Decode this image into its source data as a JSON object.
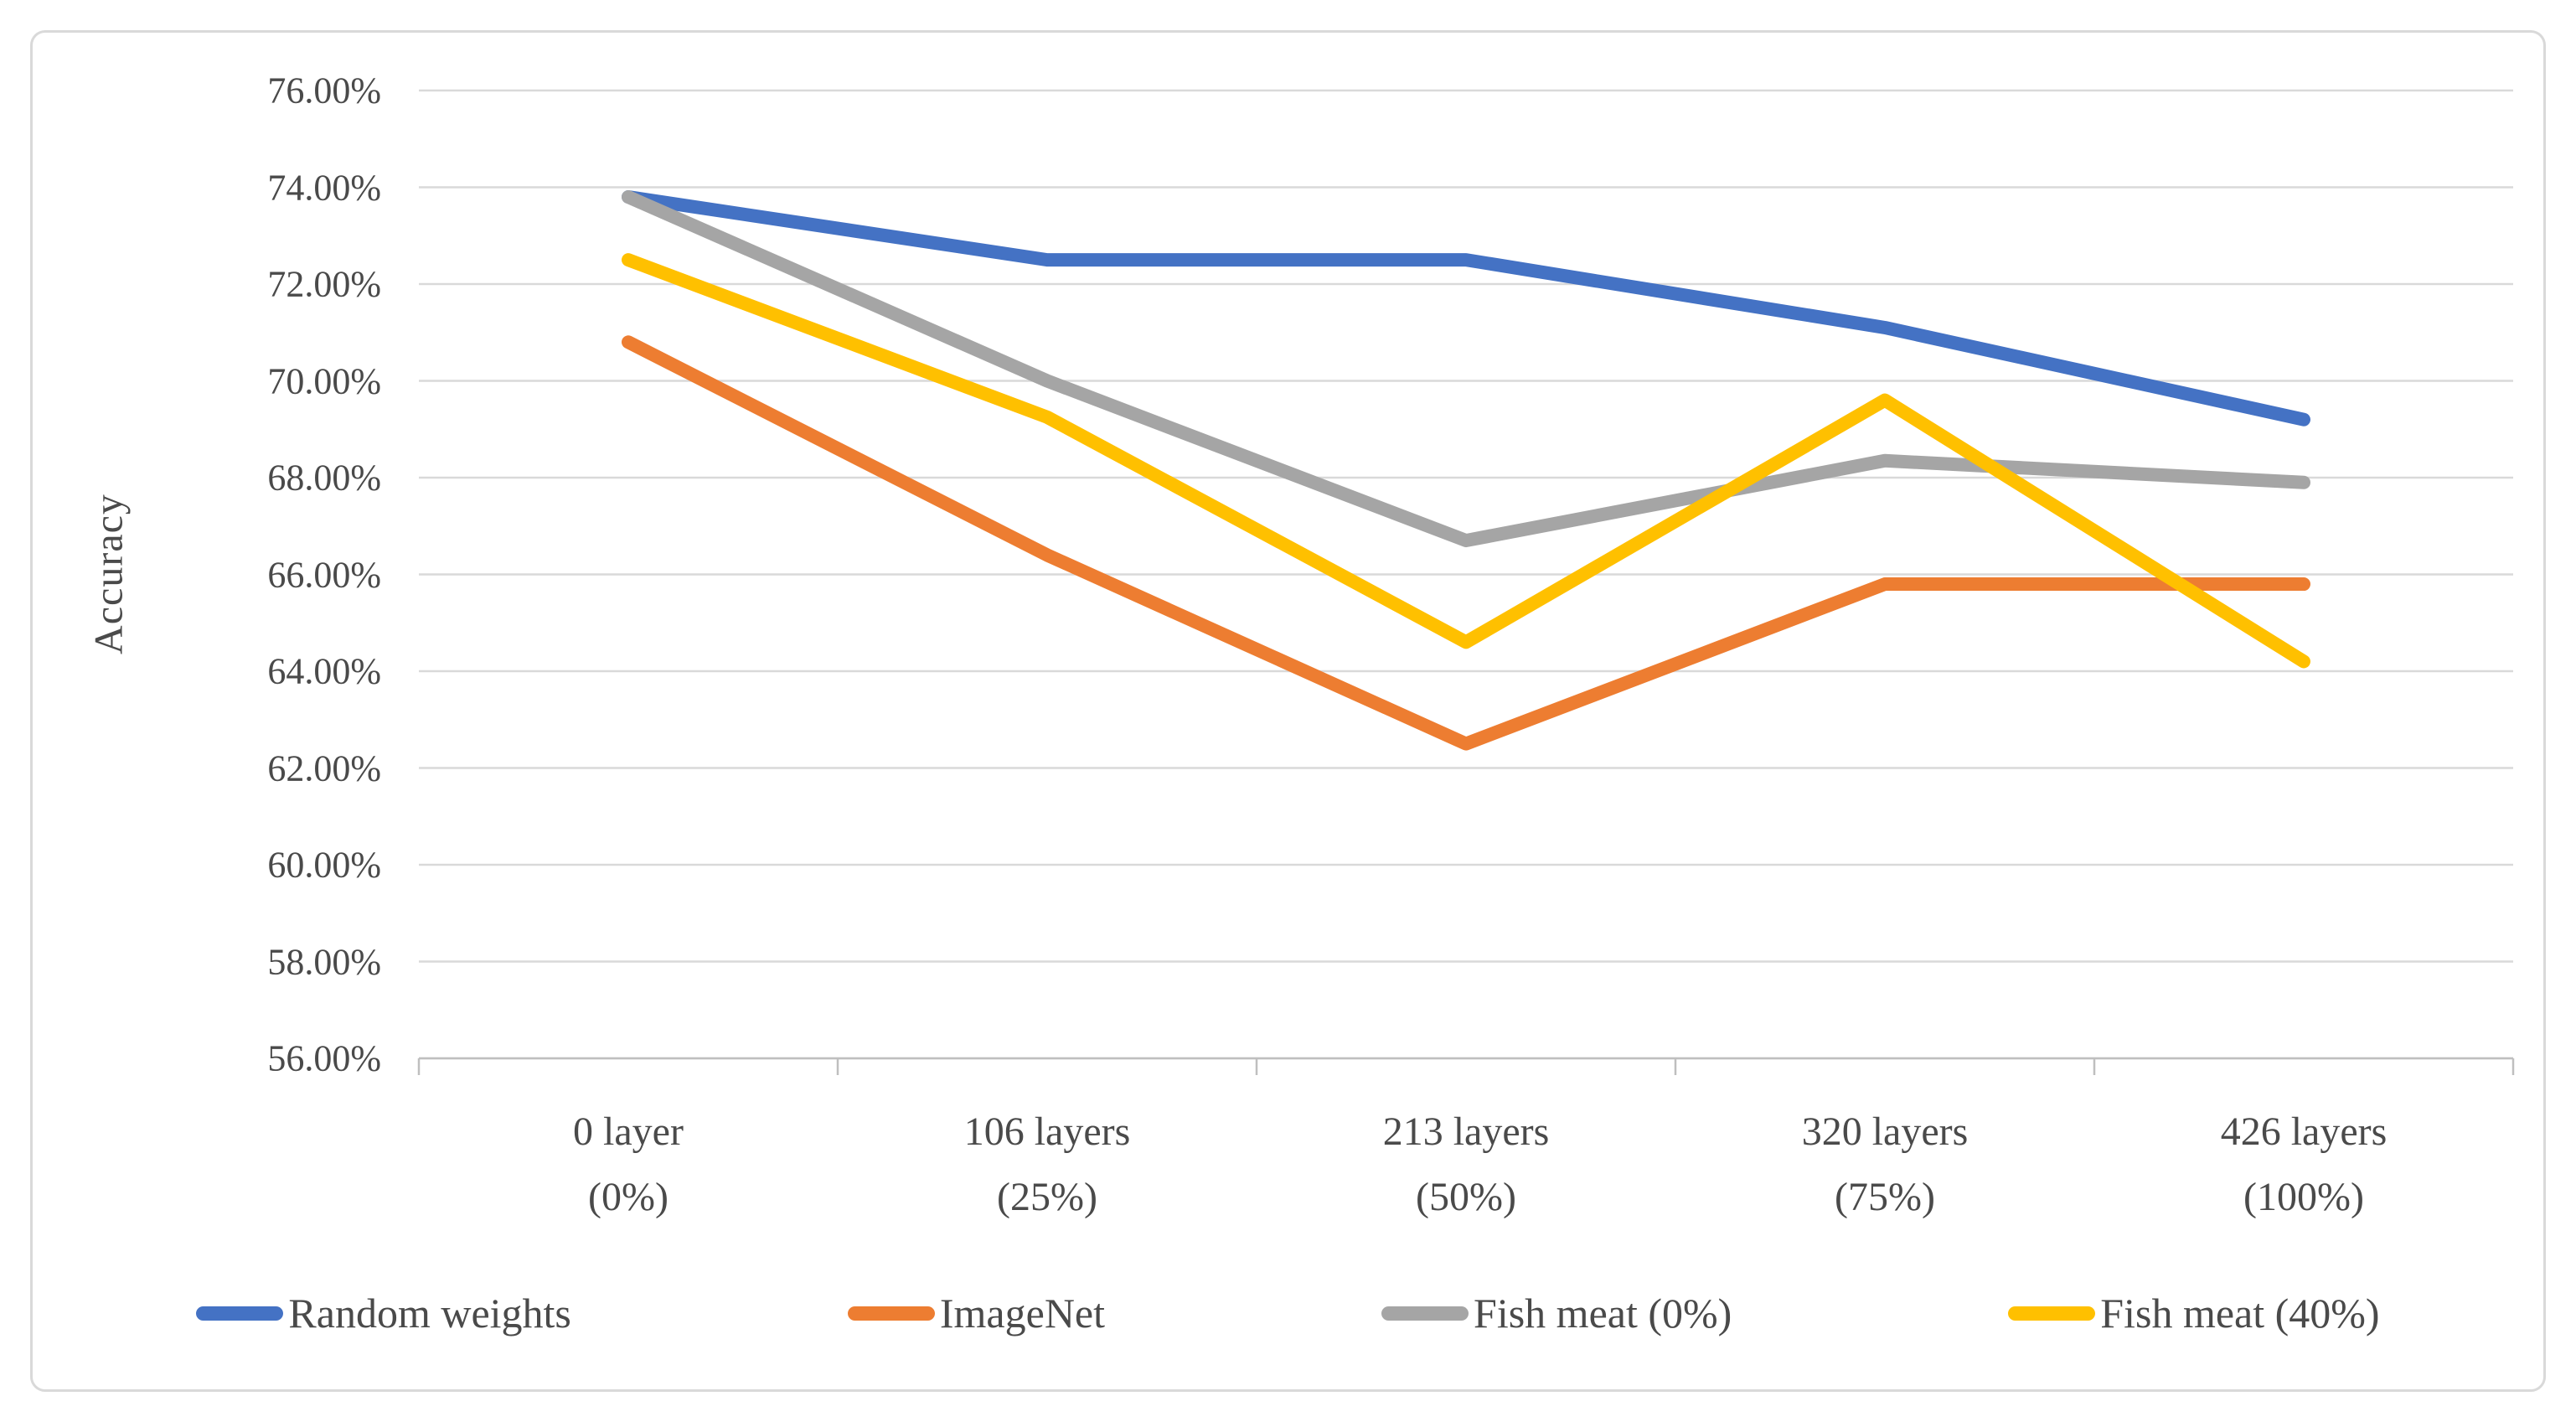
{
  "chart_data": {
    "type": "line",
    "title": "",
    "xlabel": "",
    "ylabel": "Accuracy",
    "ylim": [
      56,
      76
    ],
    "y_step": 2,
    "grid": true,
    "legend_position": "bottom",
    "y_tick_labels": [
      "76.00%",
      "74.00%",
      "72.00%",
      "70.00%",
      "68.00%",
      "66.00%",
      "64.00%",
      "62.00%",
      "60.00%",
      "58.00%",
      "56.00%"
    ],
    "categories": [
      {
        "line1": "0 layer",
        "line2": "(0%)"
      },
      {
        "line1": "106 layers",
        "line2": "(25%)"
      },
      {
        "line1": "213 layers",
        "line2": "(50%)"
      },
      {
        "line1": "320 layers",
        "line2": "(75%)"
      },
      {
        "line1": "426 layers",
        "line2": "(100%)"
      }
    ],
    "series": [
      {
        "name": "Random weights",
        "color": "#4472C4",
        "values": [
          73.8,
          72.5,
          72.5,
          71.1,
          69.2
        ]
      },
      {
        "name": "ImageNet",
        "color": "#ED7D31",
        "values": [
          70.8,
          66.4,
          62.5,
          65.8,
          65.8
        ]
      },
      {
        "name": "Fish meat (0%)",
        "color": "#A5A5A5",
        "values": [
          73.8,
          70.0,
          66.7,
          68.35,
          67.9
        ]
      },
      {
        "name": "Fish meat (40%)",
        "color": "#FFC000",
        "values": [
          72.5,
          69.25,
          64.6,
          69.6,
          64.2
        ]
      }
    ]
  },
  "styles": {
    "background": "#FFFFFF",
    "frame_border_color": "#D9D9D9",
    "gridline_color": "#D9D9D9",
    "axis_line_color": "#BFBFBF",
    "text_color": "#4A4A4A"
  }
}
